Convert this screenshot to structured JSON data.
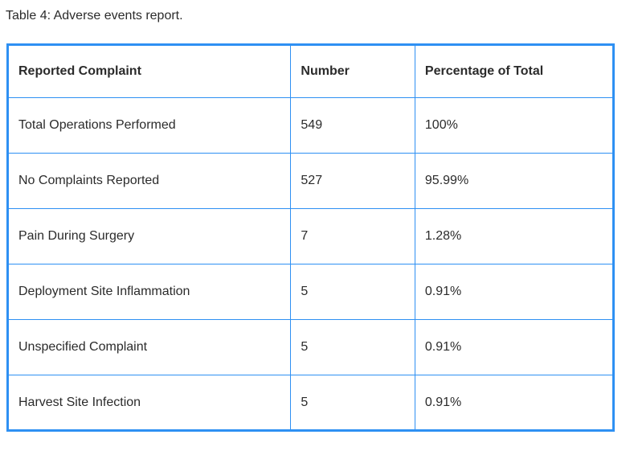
{
  "colors": {
    "border": "#2e90f3",
    "text": "#2b2b2b",
    "background": "#ffffff"
  },
  "caption": "Table 4: Adverse events report.",
  "table": {
    "headers": [
      "Reported Complaint",
      "Number",
      "Percentage of Total"
    ],
    "rows": [
      {
        "complaint": "Total Operations Performed",
        "number": "549",
        "percentage": "100%"
      },
      {
        "complaint": "No Complaints Reported",
        "number": "527",
        "percentage": "95.99%"
      },
      {
        "complaint": "Pain During Surgery",
        "number": "7",
        "percentage": "1.28%"
      },
      {
        "complaint": "Deployment Site Inflammation",
        "number": "5",
        "percentage": "0.91%"
      },
      {
        "complaint": "Unspecified Complaint",
        "number": "5",
        "percentage": "0.91%"
      },
      {
        "complaint": "Harvest Site Infection",
        "number": "5",
        "percentage": "0.91%"
      }
    ]
  },
  "chart_data": {
    "type": "table",
    "title": "Table 4: Adverse events report.",
    "columns": [
      "Reported Complaint",
      "Number",
      "Percentage of Total"
    ],
    "rows": [
      [
        "Total Operations Performed",
        549,
        "100%"
      ],
      [
        "No Complaints Reported",
        527,
        "95.99%"
      ],
      [
        "Pain During Surgery",
        7,
        "1.28%"
      ],
      [
        "Deployment Site Inflammation",
        5,
        "0.91%"
      ],
      [
        "Unspecified Complaint",
        5,
        "0.91%"
      ],
      [
        "Harvest Site Infection",
        5,
        "0.91%"
      ]
    ]
  }
}
